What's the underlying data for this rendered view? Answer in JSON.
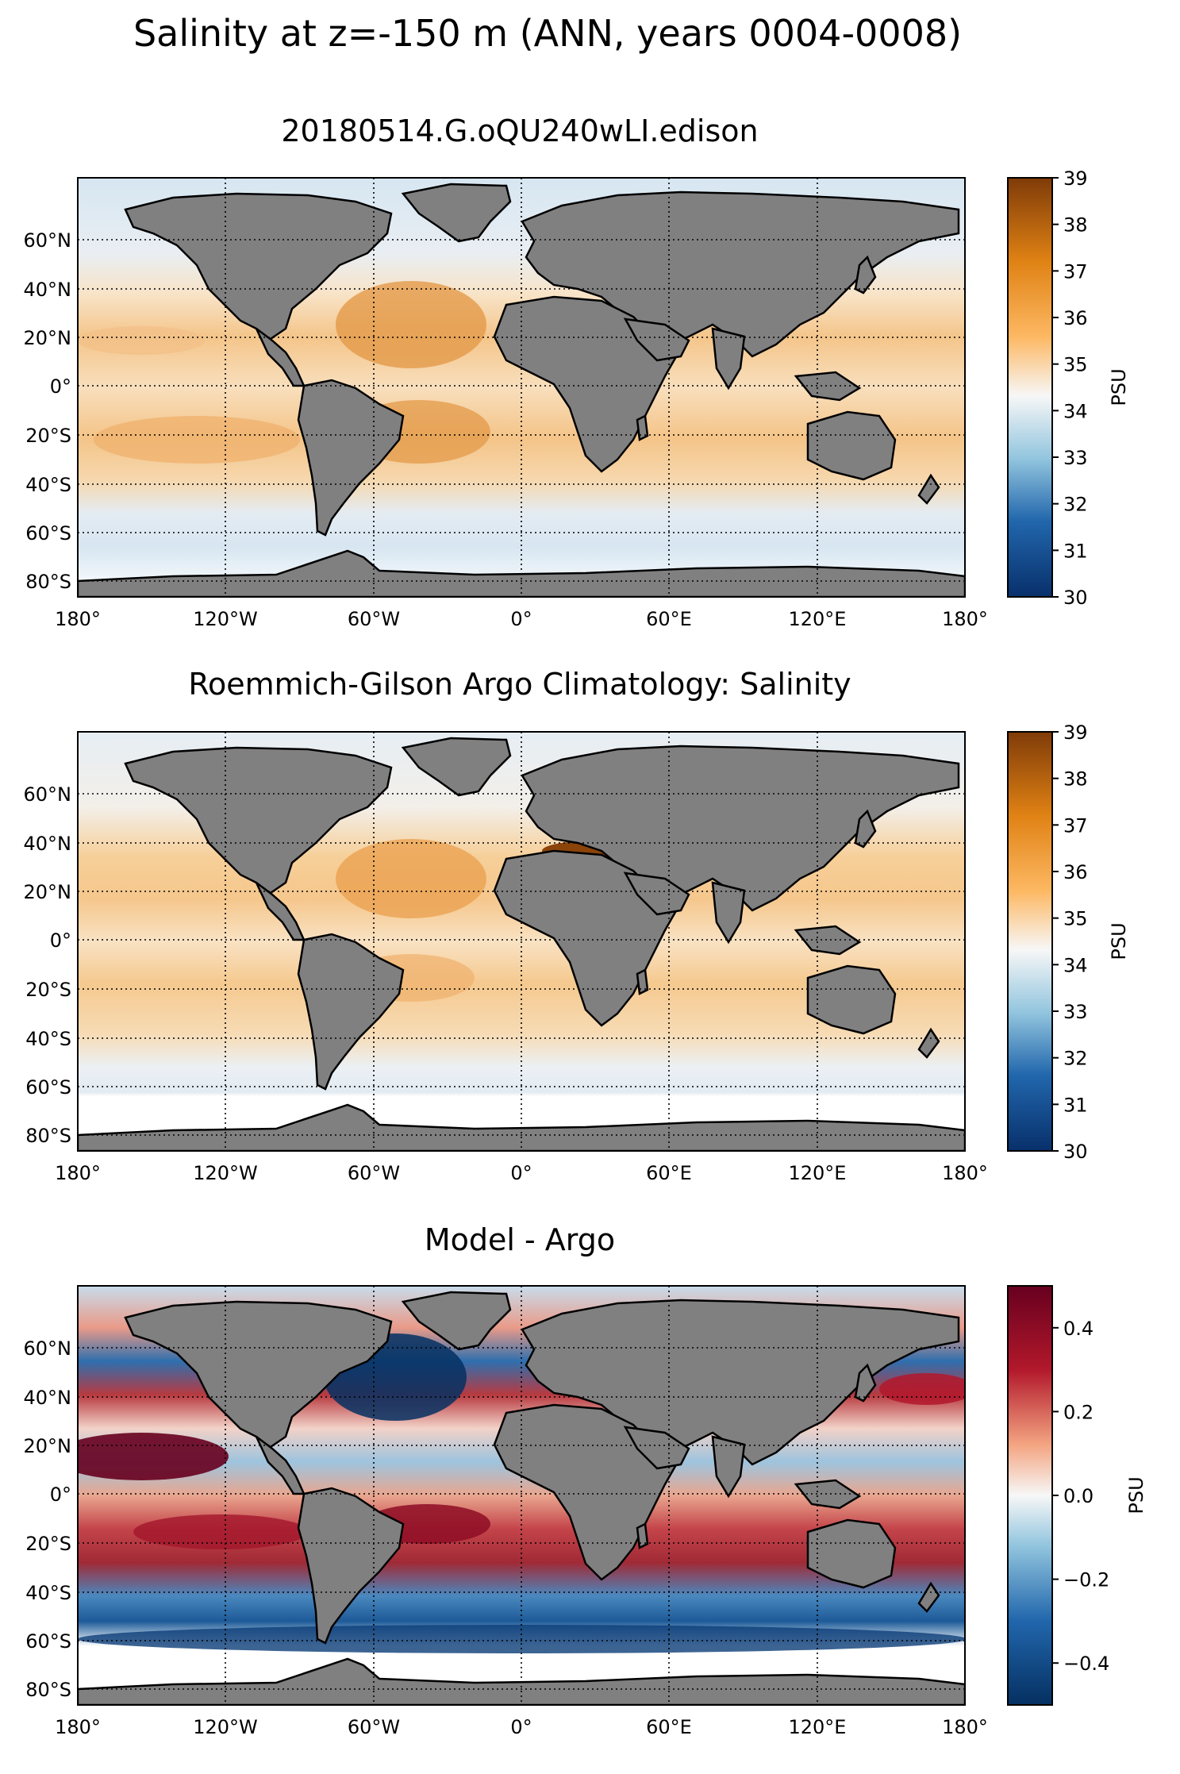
{
  "figure": {
    "title": "Salinity at z=-150 m (ANN, years 0004-0008)"
  },
  "axes": {
    "lon_ticks": [
      "180°",
      "120°W",
      "60°W",
      "0°",
      "60°E",
      "120°E",
      "180°"
    ],
    "lat_ticks": [
      "60°N",
      "40°N",
      "20°N",
      "0°",
      "20°S",
      "40°S",
      "60°S",
      "80°S"
    ]
  },
  "panels": [
    {
      "title": "20180514.G.oQU240wLI.edison",
      "colorbar": {
        "label": "PSU",
        "ticks": [
          "30",
          "31",
          "32",
          "33",
          "34",
          "35",
          "36",
          "37",
          "38",
          "39"
        ],
        "min": 30,
        "max": 39
      }
    },
    {
      "title": "Roemmich-Gilson Argo Climatology: Salinity",
      "colorbar": {
        "label": "PSU",
        "ticks": [
          "30",
          "31",
          "32",
          "33",
          "34",
          "35",
          "36",
          "37",
          "38",
          "39"
        ],
        "min": 30,
        "max": 39
      }
    },
    {
      "title": "Model - Argo",
      "colorbar": {
        "label": "PSU",
        "ticks": [
          "−0.4",
          "−0.2",
          "0.0",
          "0.2",
          "0.4"
        ],
        "min": -0.5,
        "max": 0.5
      }
    }
  ],
  "colors": {
    "land": "#808080",
    "salinity_cmap": [
      "#08306b",
      "#2166ac",
      "#92c5de",
      "#f7f7f7",
      "#fdb863",
      "#e08214",
      "#7f3b08"
    ],
    "diff_cmap": [
      "#053061",
      "#2166ac",
      "#92c5de",
      "#f7f7f7",
      "#f4a582",
      "#b2182b",
      "#67001f"
    ]
  }
}
